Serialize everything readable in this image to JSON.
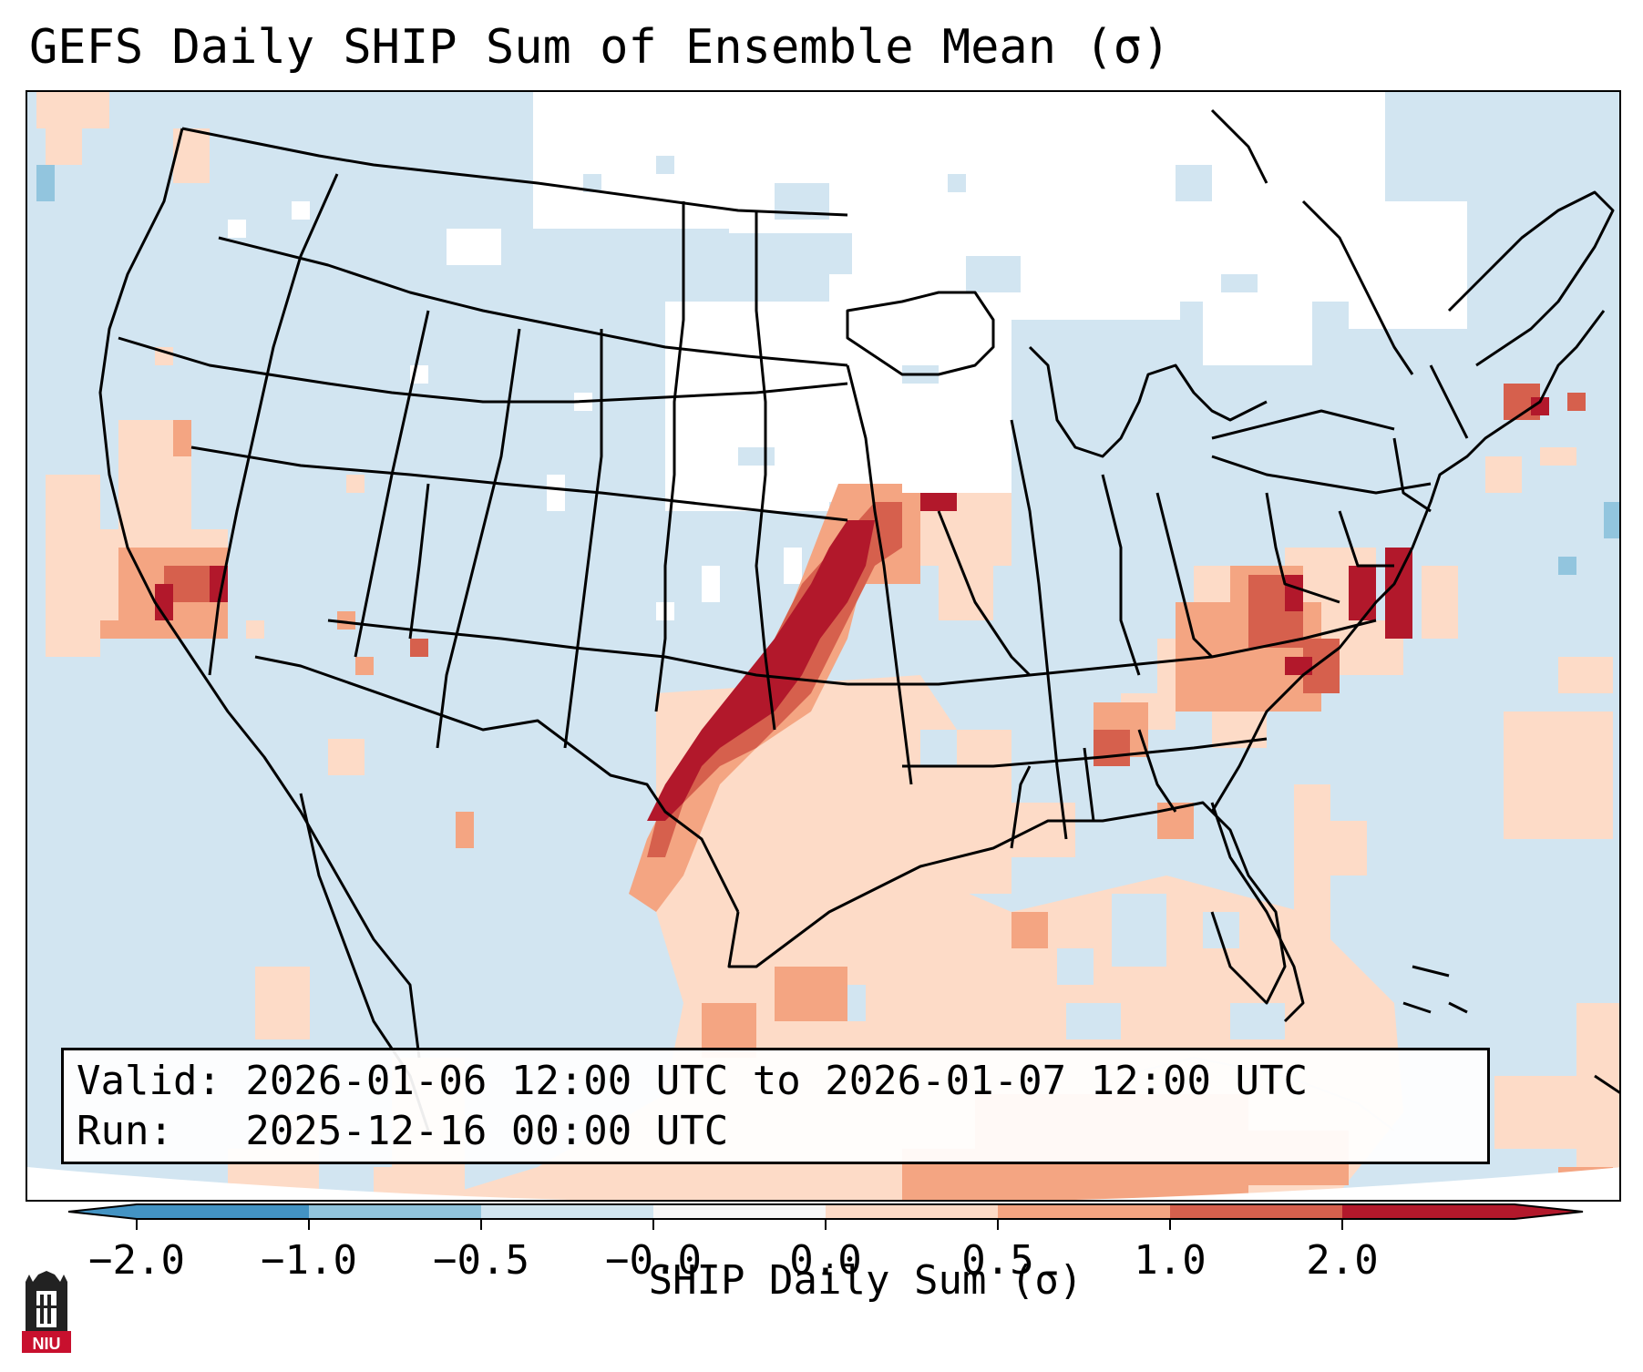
{
  "title": "GEFS Daily SHIP Sum of Ensemble Mean (σ)",
  "info": {
    "valid_line": "Valid: 2026-01-06 12:00 UTC to 2026-01-07 12:00 UTC",
    "run_line": "Run:   2025-12-16 00:00 UTC"
  },
  "colorbar": {
    "label": "SHIP Daily Sum (σ)",
    "ticks": [
      "−2.0",
      "−1.0",
      "−0.5",
      "−0.0",
      "0.0",
      "0.5",
      "1.0",
      "2.0"
    ],
    "colors": [
      "#4393c3",
      "#92c5de",
      "#d1e5f0",
      "#f7f7f7",
      "#fddbc7",
      "#f4a582",
      "#d6604d",
      "#b2182b"
    ],
    "extend": "both"
  },
  "map": {
    "region": "Contiguous United States",
    "features": [
      "coastlines",
      "state borders",
      "country borders"
    ],
    "ocean_color": "#d1e5f0",
    "highlights": [
      {
        "area": "Texas to Missouri corridor",
        "level": "1.0 to 2.0"
      },
      {
        "area": "Virginia / Maryland",
        "level": "1.0 to 2.0"
      },
      {
        "area": "Central California",
        "level": "1.0 to 2.0"
      },
      {
        "area": "Gulf of Mexico",
        "level": "0.0 to 0.5"
      }
    ]
  },
  "logo": {
    "text": "NIU"
  }
}
